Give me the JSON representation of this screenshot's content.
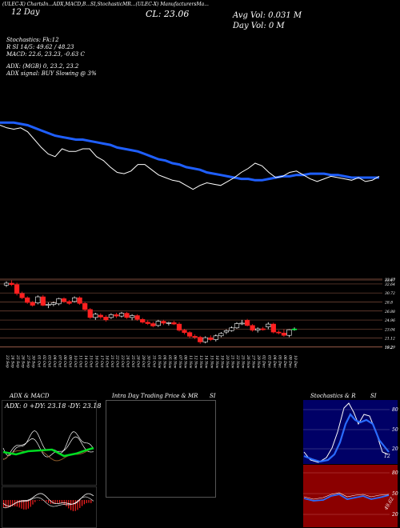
{
  "header": {
    "top_line": "(ULEC-X) ChartsIn...ADX,MACD,B...SI,StochasticMR...(ULEC-X) ManufacturersMa...",
    "left_big": "12 Day",
    "ticker": "ULEC(X)",
    "close": "CL: 23.06",
    "avg_vol": "Avg Vol: 0.031 M",
    "day_vol": "Day Vol: 0 M",
    "stoch_line": "Stochastics: Fk:12",
    "rsi_line": "R          SI 14/5: 49.62 / 48.23",
    "macd_line": "MACD: 22.6, 23.23, -0.63 C",
    "adx_line": "ADX:                              (MGB) 0, 23.2, 23.2",
    "adx_signal": "ADX signal:                              BUY Slowing @ 3%"
  },
  "panels": {
    "adx_title": "ADX & MACD",
    "adx_values": "ADX: 0   +DY: 23.18   -DY: 23.18",
    "intraday_title": "Intra Day Trading Price & MR",
    "intraday_si": "SI",
    "stoch_title": "Stochastics & R",
    "stoch_si": "SI",
    "stoch_ticks": [
      "80",
      "50",
      "20"
    ],
    "stoch_last": "12",
    "rsi_ticks": [
      "80",
      "50",
      "20"
    ],
    "rsi_last": "49.62"
  },
  "chart_data": {
    "type": "candlestick",
    "dates": [
      "23 Sep",
      "24 Sep",
      "25 Sep",
      "26 Sep",
      "27 Sep",
      "30 Sep",
      "01 Oct",
      "02 Oct",
      "03 Oct",
      "04 Oct",
      "07 Oct",
      "08 Oct",
      "09 Oct",
      "10 Oct",
      "11 Oct",
      "14 Oct",
      "15 Oct",
      "16 Oct",
      "17 Oct",
      "18 Oct",
      "21 Oct",
      "22 Oct",
      "23 Oct",
      "24 Oct",
      "25 Oct",
      "28 Oct",
      "29 Oct",
      "30 Oct",
      "31 Oct",
      "01 Nov",
      "04 Nov",
      "05 Nov",
      "06 Nov",
      "07 Nov",
      "08 Nov",
      "11 Nov",
      "12 Nov",
      "13 Nov",
      "14 Nov",
      "15 Nov",
      "18 Nov",
      "19 Nov",
      "20 Nov",
      "21 Nov",
      "22 Nov",
      "25 Nov",
      "26 Nov",
      "27 Nov",
      "29 Nov",
      "02 Dec",
      "03 Dec",
      "04 Dec",
      "05 Dec",
      "06 Dec",
      "09 Dec",
      "10 Dec"
    ],
    "price_levels": [
      "33.67",
      "33.47",
      "32.64",
      "30.72",
      "28.8",
      "26.88",
      "24.96",
      "23.04",
      "21.12",
      "19.2",
      "19.29"
    ],
    "ylim": [
      18.5,
      34.5
    ],
    "candles": [
      {
        "o": 32.4,
        "h": 33.2,
        "l": 32.0,
        "c": 32.8,
        "up": true
      },
      {
        "o": 32.8,
        "h": 33.4,
        "l": 32.2,
        "c": 32.5,
        "up": false
      },
      {
        "o": 32.5,
        "h": 32.9,
        "l": 30.2,
        "c": 30.6,
        "up": false
      },
      {
        "o": 30.6,
        "h": 31.0,
        "l": 29.4,
        "c": 29.7,
        "up": false
      },
      {
        "o": 29.7,
        "h": 30.0,
        "l": 28.4,
        "c": 28.7,
        "up": false
      },
      {
        "o": 28.7,
        "h": 29.0,
        "l": 27.8,
        "c": 28.1,
        "up": false
      },
      {
        "o": 28.6,
        "h": 30.2,
        "l": 28.3,
        "c": 29.9,
        "up": true
      },
      {
        "o": 29.9,
        "h": 30.3,
        "l": 27.9,
        "c": 28.1,
        "up": false
      },
      {
        "o": 28.1,
        "h": 28.7,
        "l": 27.5,
        "c": 28.3,
        "up": true
      },
      {
        "o": 28.3,
        "h": 28.9,
        "l": 27.9,
        "c": 28.6,
        "up": true
      },
      {
        "o": 28.4,
        "h": 29.7,
        "l": 28.1,
        "c": 29.5,
        "up": true
      },
      {
        "o": 29.5,
        "h": 29.8,
        "l": 28.6,
        "c": 28.9,
        "up": false
      },
      {
        "o": 28.9,
        "h": 29.2,
        "l": 28.2,
        "c": 28.5,
        "up": false
      },
      {
        "o": 28.9,
        "h": 30.0,
        "l": 28.7,
        "c": 29.7,
        "up": true
      },
      {
        "o": 29.7,
        "h": 30.0,
        "l": 28.2,
        "c": 28.5,
        "up": false
      },
      {
        "o": 28.5,
        "h": 28.8,
        "l": 26.9,
        "c": 27.2,
        "up": false
      },
      {
        "o": 27.2,
        "h": 27.5,
        "l": 25.2,
        "c": 25.5,
        "up": false
      },
      {
        "o": 25.5,
        "h": 26.5,
        "l": 25.0,
        "c": 26.2,
        "up": true
      },
      {
        "o": 26.0,
        "h": 26.4,
        "l": 25.2,
        "c": 25.6,
        "up": false
      },
      {
        "o": 25.6,
        "h": 26.0,
        "l": 24.6,
        "c": 25.0,
        "up": false
      },
      {
        "o": 25.5,
        "h": 26.4,
        "l": 25.2,
        "c": 26.1,
        "up": true
      },
      {
        "o": 26.1,
        "h": 26.5,
        "l": 25.4,
        "c": 25.8,
        "up": false
      },
      {
        "o": 25.8,
        "h": 26.7,
        "l": 25.5,
        "c": 26.4,
        "up": true
      },
      {
        "o": 26.4,
        "h": 26.7,
        "l": 25.2,
        "c": 25.5,
        "up": false
      },
      {
        "o": 25.5,
        "h": 26.2,
        "l": 24.9,
        "c": 25.9,
        "up": true
      },
      {
        "o": 25.9,
        "h": 26.2,
        "l": 24.8,
        "c": 25.1,
        "up": false
      },
      {
        "o": 25.1,
        "h": 25.4,
        "l": 24.2,
        "c": 24.5,
        "up": false
      },
      {
        "o": 24.5,
        "h": 24.9,
        "l": 23.9,
        "c": 24.2,
        "up": false
      },
      {
        "o": 24.2,
        "h": 24.6,
        "l": 23.4,
        "c": 23.7,
        "up": false
      },
      {
        "o": 23.8,
        "h": 25.0,
        "l": 23.5,
        "c": 24.7,
        "up": true
      },
      {
        "o": 24.7,
        "h": 25.0,
        "l": 23.9,
        "c": 24.3,
        "up": false
      },
      {
        "o": 24.3,
        "h": 24.6,
        "l": 23.8,
        "c": 24.4,
        "up": true
      },
      {
        "o": 24.4,
        "h": 24.8,
        "l": 23.9,
        "c": 24.1,
        "up": false
      },
      {
        "o": 24.1,
        "h": 24.5,
        "l": 22.5,
        "c": 22.8,
        "up": false
      },
      {
        "o": 22.8,
        "h": 23.1,
        "l": 21.9,
        "c": 22.3,
        "up": false
      },
      {
        "o": 22.3,
        "h": 22.6,
        "l": 21.1,
        "c": 21.5,
        "up": false
      },
      {
        "o": 21.5,
        "h": 21.9,
        "l": 20.9,
        "c": 21.3,
        "up": false
      },
      {
        "o": 21.3,
        "h": 21.6,
        "l": 19.9,
        "c": 20.3,
        "up": false
      },
      {
        "o": 20.3,
        "h": 21.5,
        "l": 20.0,
        "c": 21.2,
        "up": true
      },
      {
        "o": 21.2,
        "h": 21.7,
        "l": 20.5,
        "c": 20.8,
        "up": false
      },
      {
        "o": 20.8,
        "h": 21.9,
        "l": 20.4,
        "c": 21.6,
        "up": true
      },
      {
        "o": 21.6,
        "h": 22.4,
        "l": 21.3,
        "c": 22.1,
        "up": true
      },
      {
        "o": 22.4,
        "h": 23.0,
        "l": 22.0,
        "c": 22.7,
        "up": true
      },
      {
        "o": 22.7,
        "h": 23.6,
        "l": 22.5,
        "c": 23.3,
        "up": true
      },
      {
        "o": 23.3,
        "h": 24.5,
        "l": 23.1,
        "c": 24.2,
        "up": true
      },
      {
        "o": 24.2,
        "h": 25.0,
        "l": 23.9,
        "c": 24.3,
        "up": true
      },
      {
        "o": 24.9,
        "h": 25.2,
        "l": 23.6,
        "c": 23.8,
        "up": false
      },
      {
        "o": 23.8,
        "h": 24.1,
        "l": 22.5,
        "c": 22.8,
        "up": false
      },
      {
        "o": 22.8,
        "h": 23.4,
        "l": 22.3,
        "c": 23.1,
        "up": true
      },
      {
        "o": 23.1,
        "h": 23.5,
        "l": 22.7,
        "c": 22.9,
        "up": false
      },
      {
        "o": 23.5,
        "h": 24.5,
        "l": 23.0,
        "c": 24.1,
        "up": true
      },
      {
        "o": 24.1,
        "h": 24.4,
        "l": 22.1,
        "c": 22.4,
        "up": false
      },
      {
        "o": 22.4,
        "h": 22.8,
        "l": 21.9,
        "c": 22.2,
        "up": false
      },
      {
        "o": 22.2,
        "h": 23.0,
        "l": 21.4,
        "c": 21.7,
        "up": false
      },
      {
        "o": 21.7,
        "h": 23.0,
        "l": 21.3,
        "c": 22.9,
        "up": true
      },
      {
        "o": 22.9,
        "h": 23.4,
        "l": 22.7,
        "c": 23.06,
        "up": true
      }
    ],
    "upper_lines": {
      "blue": [
        0.42,
        0.42,
        0.42,
        0.43,
        0.44,
        0.46,
        0.48,
        0.5,
        0.52,
        0.53,
        0.54,
        0.55,
        0.55,
        0.56,
        0.57,
        0.58,
        0.59,
        0.61,
        0.62,
        0.63,
        0.64,
        0.66,
        0.68,
        0.7,
        0.71,
        0.73,
        0.74,
        0.76,
        0.77,
        0.78,
        0.8,
        0.81,
        0.82,
        0.83,
        0.84,
        0.85,
        0.85,
        0.86,
        0.86,
        0.85,
        0.84,
        0.83,
        0.83,
        0.82,
        0.82,
        0.81,
        0.81,
        0.81,
        0.82,
        0.82,
        0.83,
        0.84,
        0.84,
        0.84,
        0.84,
        0.84
      ],
      "white": [
        0.44,
        0.46,
        0.47,
        0.46,
        0.49,
        0.55,
        0.61,
        0.66,
        0.68,
        0.62,
        0.64,
        0.64,
        0.62,
        0.62,
        0.68,
        0.71,
        0.76,
        0.8,
        0.81,
        0.79,
        0.74,
        0.74,
        0.78,
        0.82,
        0.84,
        0.86,
        0.87,
        0.9,
        0.93,
        0.9,
        0.88,
        0.89,
        0.9,
        0.87,
        0.84,
        0.8,
        0.77,
        0.73,
        0.75,
        0.8,
        0.84,
        0.83,
        0.8,
        0.79,
        0.82,
        0.85,
        0.87,
        0.85,
        0.83,
        0.84,
        0.85,
        0.86,
        0.84,
        0.87,
        0.86,
        0.83
      ]
    }
  }
}
